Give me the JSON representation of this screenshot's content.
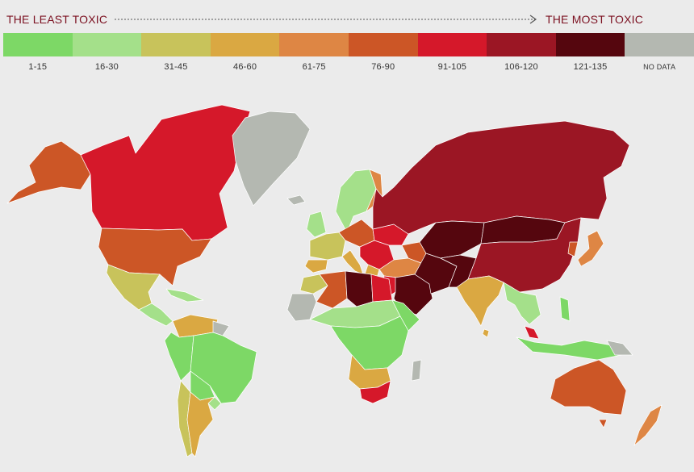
{
  "header": {
    "least_label": "THE LEAST TOXIC",
    "most_label": "THE MOST TOXIC"
  },
  "legend": [
    {
      "label": "1-15",
      "color": "#7dd866"
    },
    {
      "label": "16-30",
      "color": "#a4e08a"
    },
    {
      "label": "31-45",
      "color": "#c8c35b"
    },
    {
      "label": "46-60",
      "color": "#daa842"
    },
    {
      "label": "61-75",
      "color": "#de8644"
    },
    {
      "label": "76-90",
      "color": "#cc5626"
    },
    {
      "label": "91-105",
      "color": "#d5182a"
    },
    {
      "label": "106-120",
      "color": "#9b1624"
    },
    {
      "label": "121-135",
      "color": "#55060e"
    },
    {
      "label": "NO DATA",
      "color": "#b4b8b1"
    }
  ],
  "map": {
    "ocean_color": "#ebebeb",
    "border_color": "#ffffff"
  }
}
